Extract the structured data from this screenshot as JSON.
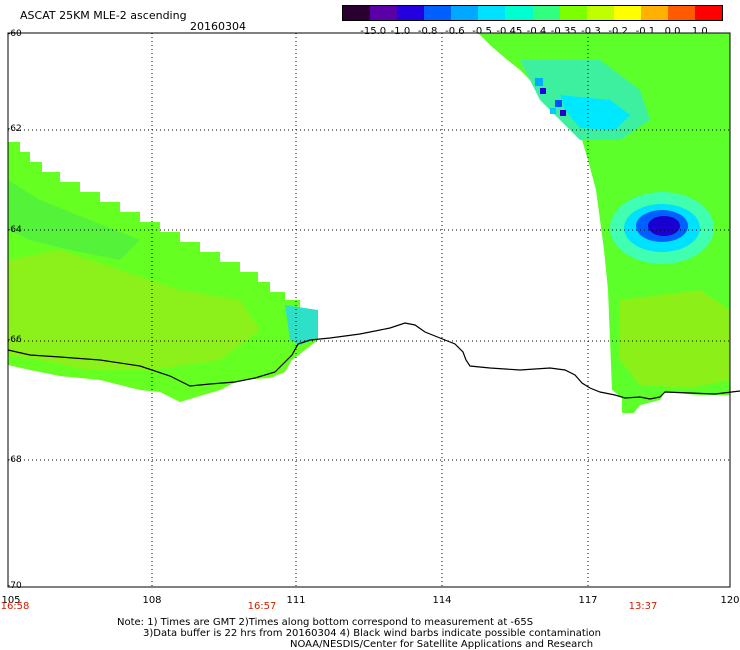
{
  "header": {
    "title": "ASCAT 25KM MLE-2 ascending",
    "date": "20160304"
  },
  "colorbar": {
    "colors": [
      "#2a0030",
      "#5b00a8",
      "#2400e0",
      "#0060ff",
      "#00a8ff",
      "#00e0ff",
      "#00ffd0",
      "#30ff80",
      "#7cff00",
      "#c0ff00",
      "#ffff00",
      "#ffb000",
      "#ff5a00",
      "#ff0000"
    ],
    "labels": [
      "-15.0",
      "-1.0",
      "-0.8",
      "-0.6",
      "-0.5",
      "-0.45",
      "-0.4",
      "-0.35",
      "-0.3",
      "-0.2",
      "-0.1",
      "0.0",
      "1.0"
    ]
  },
  "map": {
    "lat_labels": [
      "-60",
      "-62",
      "-64",
      "-66",
      "-68",
      "-70"
    ],
    "lon_labels": [
      "105",
      "108",
      "111",
      "114",
      "117",
      "120"
    ],
    "time_labels": [
      "16:58",
      "16:57",
      "13:37"
    ],
    "coastline_color": "#000000",
    "grid_style": "dotted"
  },
  "notes": {
    "line1": "Note: 1) Times are GMT 2)Times along bottom correspond to measurement at -65S",
    "line2": "3)Data buffer is 22 hrs from 20160304 4) Black wind barbs indicate possible contamination",
    "line3": "NOAA/NESDIS/Center for Satellite Applications and Research"
  }
}
